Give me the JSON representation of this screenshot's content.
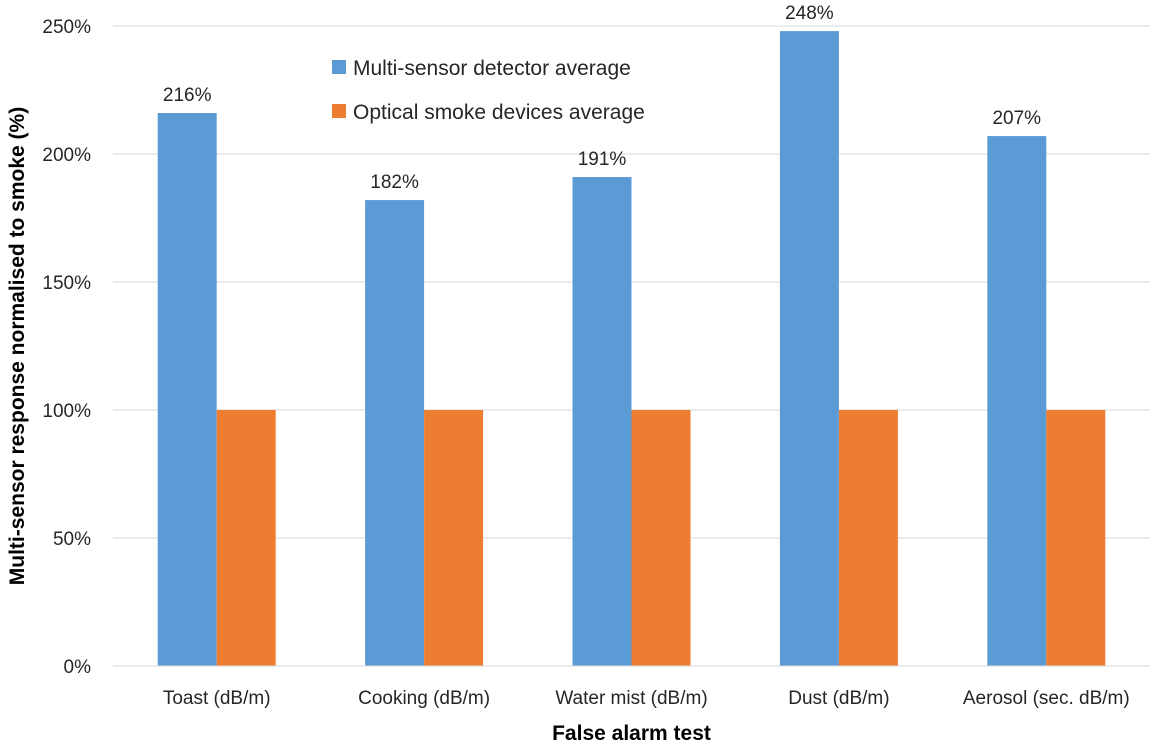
{
  "chart_data": {
    "type": "bar",
    "title": "",
    "xlabel": "False alarm test",
    "ylabel": "Multi-sensor response normalised to smoke (%)",
    "categories": [
      "Toast (dB/m)",
      "Cooking (dB/m)",
      "Water mist (dB/m)",
      "Dust (dB/m)",
      "Aerosol (sec. dB/m)"
    ],
    "series": [
      {
        "name": "Multi-sensor detector average",
        "values": [
          216,
          182,
          191,
          248,
          207
        ],
        "color": "#5B9BD5",
        "data_labels": [
          "216%",
          "182%",
          "191%",
          "248%",
          "207%"
        ]
      },
      {
        "name": "Optical smoke devices average",
        "values": [
          100,
          100,
          100,
          100,
          100
        ],
        "color": "#ED7D31"
      }
    ],
    "ylim": [
      0,
      250
    ],
    "yticks": [
      0,
      50,
      100,
      150,
      200,
      250
    ],
    "ytick_labels": [
      "0%",
      "50%",
      "100%",
      "150%",
      "200%",
      "250%"
    ],
    "grid": true,
    "legend_position": "top-center"
  }
}
